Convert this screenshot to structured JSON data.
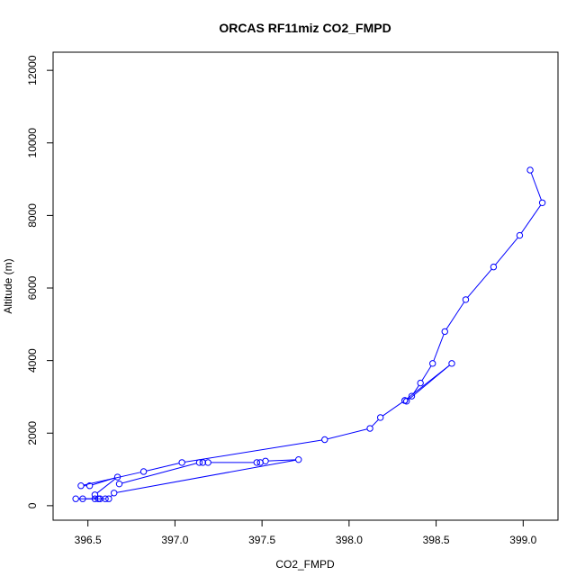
{
  "chart_data": {
    "type": "line",
    "title": "ORCAS RF11miz CO2_FMPD",
    "xlabel": "CO2_FMPD",
    "ylabel": "Altitude (m)",
    "xlim": [
      396.3,
      399.2
    ],
    "ylim": [
      -400,
      12500
    ],
    "x_ticks": [
      396.5,
      397.0,
      397.5,
      398.0,
      398.5,
      399.0
    ],
    "x_tick_labels": [
      "396.5",
      "397.0",
      "397.5",
      "398.0",
      "398.5",
      "399.0"
    ],
    "y_ticks": [
      0,
      2000,
      4000,
      6000,
      8000,
      10000,
      12000
    ],
    "y_tick_labels": [
      "0",
      "2000",
      "4000",
      "6000",
      "8000",
      "10000",
      "12000"
    ],
    "grid": false,
    "series": [
      {
        "color": "#0000ff",
        "marker": "open-circle",
        "x": [
          399.04,
          399.11,
          398.98,
          398.83,
          398.67,
          398.55,
          398.48,
          398.41,
          398.36,
          398.32,
          398.33,
          398.59,
          398.32,
          398.18,
          398.12,
          397.86,
          397.04,
          396.82,
          396.46,
          396.51,
          396.67,
          396.54,
          396.54,
          396.56,
          396.6,
          396.43,
          396.47,
          396.57,
          396.62,
          396.65,
          397.71,
          397.52,
          397.49,
          397.47,
          397.19,
          397.16,
          397.14,
          396.68
        ],
        "y": [
          9250,
          8350,
          7450,
          6580,
          5680,
          4800,
          3920,
          3380,
          3020,
          2900,
          2880,
          3920,
          2900,
          2430,
          2130,
          1820,
          1190,
          940,
          550,
          550,
          790,
          300,
          190,
          190,
          190,
          190,
          190,
          190,
          190,
          350,
          1270,
          1230,
          1190,
          1190,
          1190,
          1190,
          1190,
          600
        ]
      }
    ]
  }
}
